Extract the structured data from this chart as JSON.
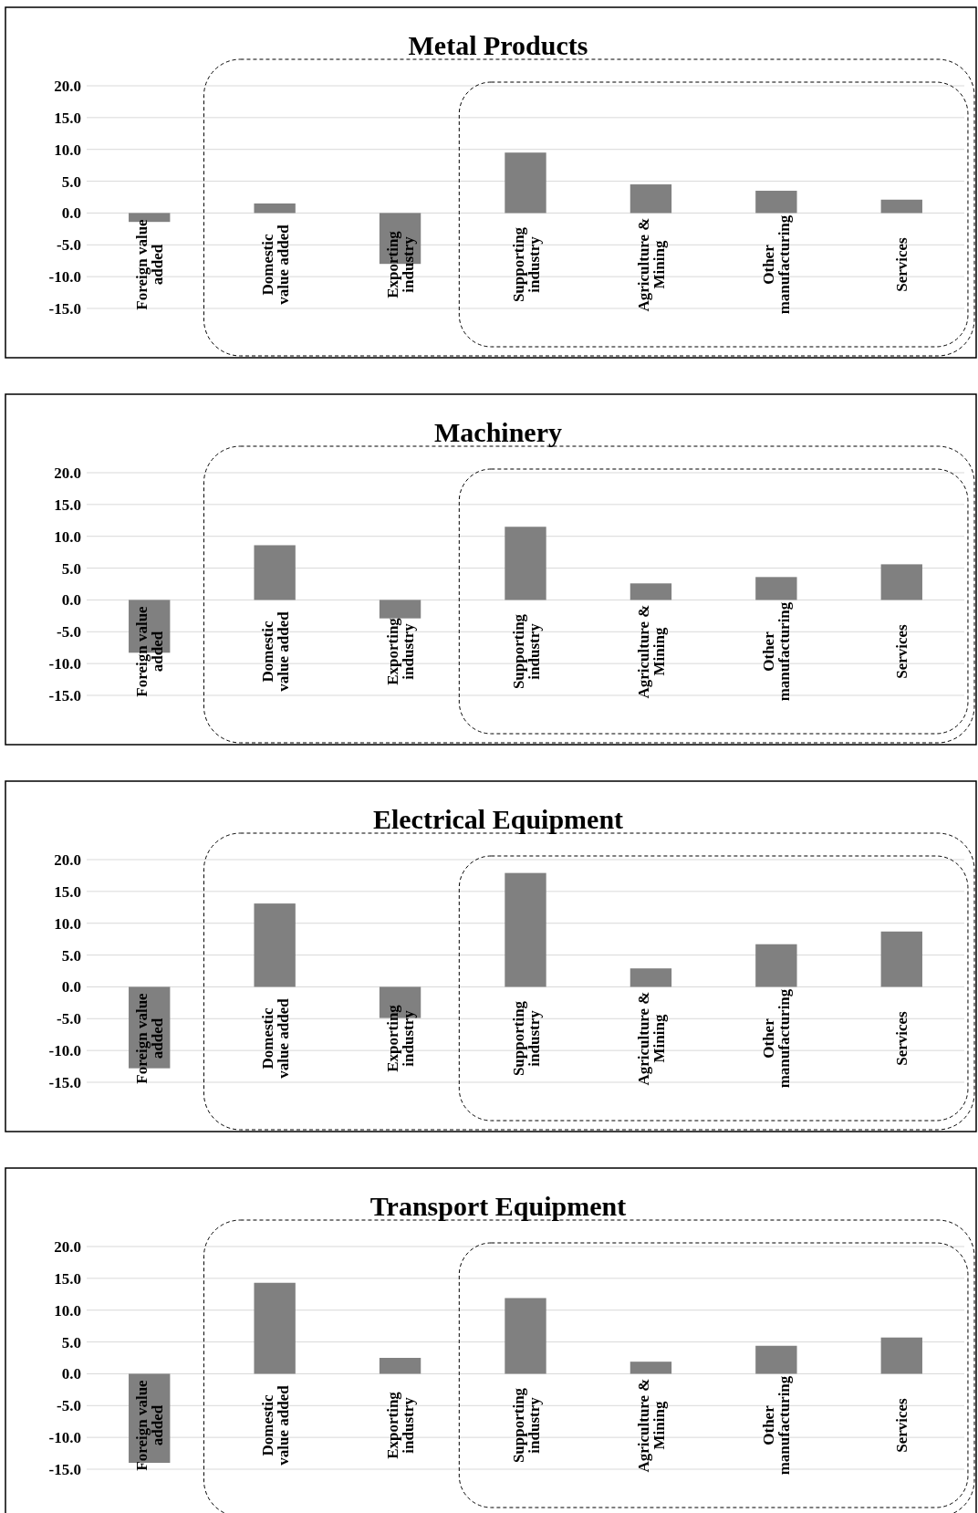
{
  "chart_data": [
    {
      "type": "bar",
      "title": "Metal Products",
      "categories": [
        "Foreign value added",
        "Domestic value added",
        "Exporting industry",
        "Supporting industry",
        "Agriculture & Mining",
        "Other manufacturing",
        "Services"
      ],
      "values": [
        -1.4,
        1.5,
        -8.0,
        9.5,
        4.5,
        3.5,
        2.1
      ],
      "color": "#808080",
      "ylim": [
        -15,
        20
      ],
      "yticks": [
        {
          "value": 20,
          "label": "20.0"
        },
        {
          "value": 15,
          "label": "15.0"
        },
        {
          "value": 10,
          "label": "10.0"
        },
        {
          "value": 5,
          "label": "5.0"
        },
        {
          "value": 0,
          "label": "0.0"
        },
        {
          "value": -5,
          "label": "-5.0"
        },
        {
          "value": -10,
          "label": "-10.0"
        },
        {
          "value": -15,
          "label": "-15.0"
        }
      ],
      "grid": "y"
    },
    {
      "type": "bar",
      "title": "Machinery",
      "categories": [
        "Foreign value added",
        "Domestic value added",
        "Exporting industry",
        "Supporting industry",
        "Agriculture & Mining",
        "Other manufacturing",
        "Services"
      ],
      "values": [
        -8.3,
        8.6,
        -2.9,
        11.5,
        2.6,
        3.6,
        5.6
      ],
      "color": "#808080",
      "ylim": [
        -15,
        20
      ],
      "yticks": [
        {
          "value": 20,
          "label": "20.0"
        },
        {
          "value": 15,
          "label": "15.0"
        },
        {
          "value": 10,
          "label": "10.0"
        },
        {
          "value": 5,
          "label": "5.0"
        },
        {
          "value": 0,
          "label": "0.0"
        },
        {
          "value": -5,
          "label": "-5.0"
        },
        {
          "value": -10,
          "label": "-10.0"
        },
        {
          "value": -15,
          "label": "-15.0"
        }
      ],
      "grid": "y"
    },
    {
      "type": "bar",
      "title": "Electrical Equipment",
      "categories": [
        "Foreign value added",
        "Domestic value added",
        "Exporting industry",
        "Supporting industry",
        "Agriculture & Mining",
        "Other manufacturing",
        "Services"
      ],
      "values": [
        -12.8,
        13.1,
        -4.9,
        17.9,
        2.9,
        6.7,
        8.7
      ],
      "color": "#808080",
      "ylim": [
        -15,
        20
      ],
      "yticks": [
        {
          "value": 20,
          "label": "20.0"
        },
        {
          "value": 15,
          "label": "15.0"
        },
        {
          "value": 10,
          "label": "10.0"
        },
        {
          "value": 5,
          "label": "5.0"
        },
        {
          "value": 0,
          "label": "0.0"
        },
        {
          "value": -5,
          "label": "-5.0"
        },
        {
          "value": -10,
          "label": "-10.0"
        },
        {
          "value": -15,
          "label": "-15.0"
        }
      ],
      "grid": "y"
    },
    {
      "type": "bar",
      "title": "Transport Equipment",
      "categories": [
        "Foreign value added",
        "Domestic value added",
        "Exporting industry",
        "Supporting industry",
        "Agriculture & Mining",
        "Other manufacturing",
        "Services"
      ],
      "values": [
        -14.0,
        14.3,
        2.5,
        11.9,
        1.9,
        4.4,
        5.7
      ],
      "color": "#808080",
      "ylim": [
        -15,
        20
      ],
      "yticks": [
        {
          "value": 20,
          "label": "20.0"
        },
        {
          "value": 15,
          "label": "15.0"
        },
        {
          "value": 10,
          "label": "10.0"
        },
        {
          "value": 5,
          "label": "5.0"
        },
        {
          "value": 0,
          "label": "0.0"
        },
        {
          "value": -5,
          "label": "-5.0"
        },
        {
          "value": -10,
          "label": "-10.0"
        },
        {
          "value": -15,
          "label": "-15.0"
        }
      ],
      "grid": "y"
    }
  ]
}
